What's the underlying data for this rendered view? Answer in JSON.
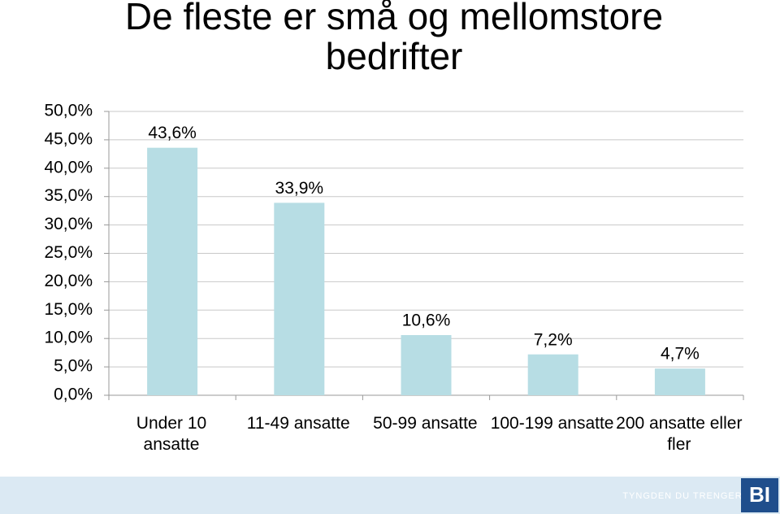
{
  "chart_data": {
    "type": "bar",
    "title": "De fleste er små og mellomstore bedrifter",
    "categories": [
      "Under 10 ansatte",
      "11-49 ansatte",
      "50-99 ansatte",
      "100-199 ansatte",
      "200 ansatte eller fler"
    ],
    "values": [
      43.6,
      33.9,
      10.6,
      7.2,
      4.7
    ],
    "value_labels": [
      "43,6%",
      "33,9%",
      "10,6%",
      "7,2%",
      "4,7%"
    ],
    "color": "#b7dde4",
    "ylim": [
      0,
      50
    ],
    "yticks": [
      {
        "value": 0,
        "label": "0,0%"
      },
      {
        "value": 5,
        "label": "5,0%"
      },
      {
        "value": 10,
        "label": "10,0%"
      },
      {
        "value": 15,
        "label": "15,0%"
      },
      {
        "value": 20,
        "label": "20,0%"
      },
      {
        "value": 25,
        "label": "25,0%"
      },
      {
        "value": 30,
        "label": "30,0%"
      },
      {
        "value": 35,
        "label": "35,0%"
      },
      {
        "value": 40,
        "label": "40,0%"
      },
      {
        "value": 45,
        "label": "45,0%"
      },
      {
        "value": 50,
        "label": "50,0%"
      }
    ],
    "grid": true
  },
  "footer": {
    "slogan": "TYNGDEN DU TRENGER",
    "logo": "BI"
  }
}
